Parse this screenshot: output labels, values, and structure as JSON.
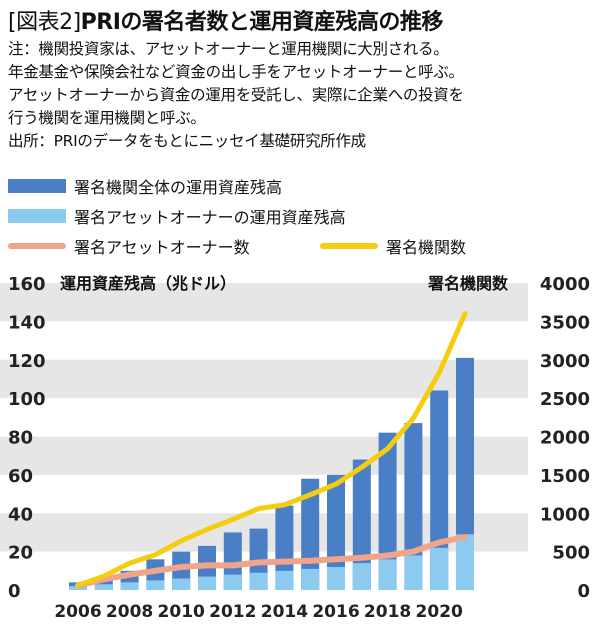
{
  "header": {
    "tag": "[図表2]",
    "title": "PRIの署名者数と運用資産残高の推移"
  },
  "notes": [
    "注：機関投資家は、アセットオーナーと運用機関に大別される。",
    "年金基金や保険会社など資金の出し手をアセットオーナーと呼ぶ。",
    "アセットオーナーから資金の運用を受託し、実際に企業への投資を",
    "行う機関を運用機関と呼ぶ。",
    "出所：PRIのデータをもとにニッセイ基礎研究所作成"
  ],
  "chart_data": {
    "type": "bar",
    "title": "PRIの署名者数と運用資産残高の推移",
    "x": [
      2006,
      2007,
      2008,
      2009,
      2010,
      2011,
      2012,
      2013,
      2014,
      2015,
      2016,
      2017,
      2018,
      2019,
      2020,
      2021
    ],
    "x_tick_labels": [
      "2006",
      "2008",
      "2010",
      "2012",
      "2014",
      "2016",
      "2018",
      "2020"
    ],
    "y_left": {
      "label": "運用資産残高（兆ドル）",
      "ylim": [
        0,
        160
      ],
      "ticks": [
        0,
        20,
        40,
        60,
        80,
        100,
        120,
        140,
        160
      ]
    },
    "y_right": {
      "label": "署名機関数",
      "ylim": [
        0,
        4000
      ],
      "ticks": [
        0,
        500,
        1000,
        1500,
        2000,
        2500,
        3000,
        3500,
        4000
      ]
    },
    "grid": "horizontal bands",
    "legend_position": "top",
    "series": [
      {
        "name": "署名機関全体の運用資産残高",
        "kind": "bar",
        "axis": "left",
        "color": "#4a7fc6",
        "values": [
          4,
          6,
          10,
          16,
          20,
          23,
          30,
          32,
          44,
          58,
          60,
          68,
          82,
          87,
          104,
          121
        ]
      },
      {
        "name": "署名アセットオーナーの運用資産残高",
        "kind": "bar",
        "axis": "left",
        "color": "#8ccaf0",
        "values": [
          2,
          3,
          4,
          5,
          6,
          7,
          8,
          9,
          10,
          11,
          12,
          14,
          16,
          18,
          22,
          29
        ]
      },
      {
        "name": "署名アセットオーナー数",
        "kind": "line",
        "axis": "right",
        "color": "#f0a58a",
        "values": [
          60,
          140,
          200,
          250,
          300,
          320,
          320,
          360,
          370,
          380,
          400,
          420,
          450,
          500,
          620,
          690
        ]
      },
      {
        "name": "署名機関数",
        "kind": "line",
        "axis": "right",
        "color": "#f5cd10",
        "values": [
          60,
          180,
          350,
          460,
          640,
          790,
          920,
          1060,
          1110,
          1240,
          1380,
          1600,
          1840,
          2240,
          2830,
          3600
        ]
      }
    ]
  }
}
